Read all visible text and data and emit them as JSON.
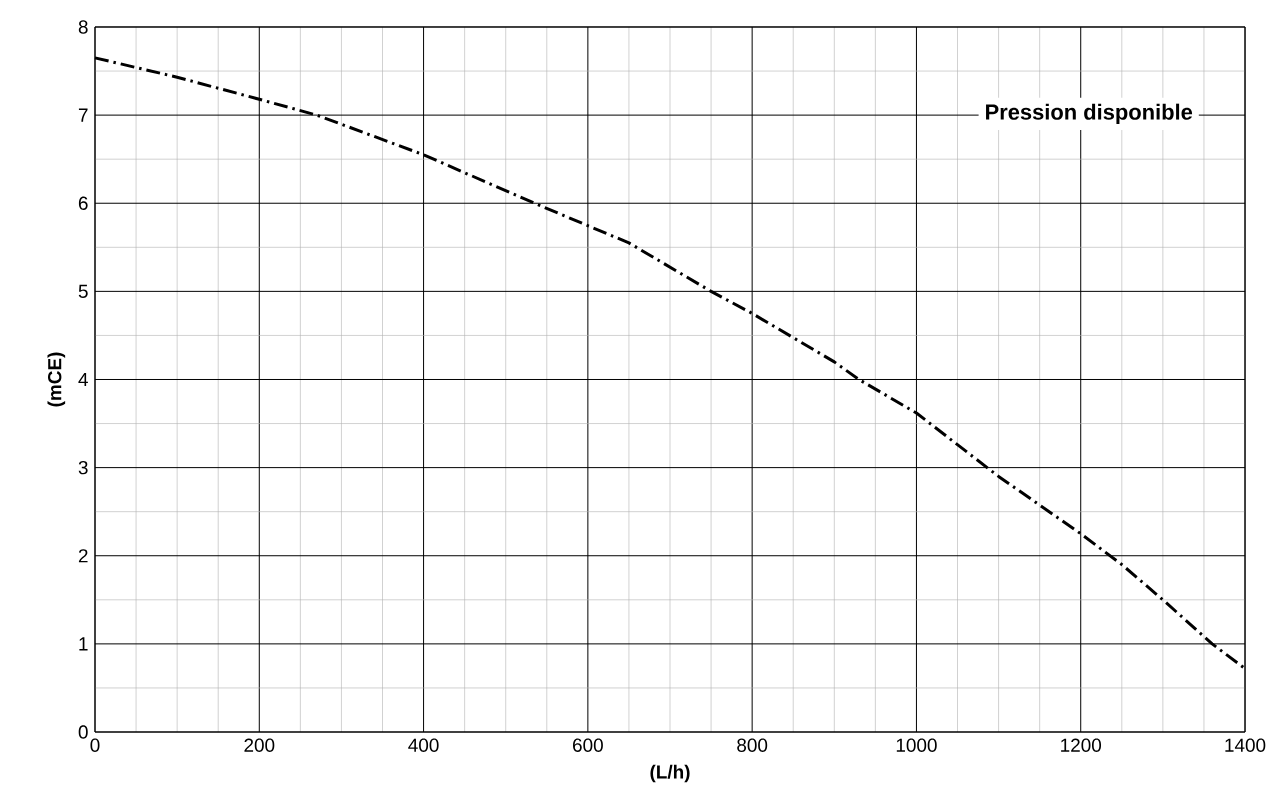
{
  "chart_data": {
    "type": "line",
    "xlabel": "(L/h)",
    "ylabel": "(mCE)",
    "xlim": [
      0,
      1400
    ],
    "ylim": [
      0,
      8
    ],
    "xticks": [
      0,
      200,
      400,
      600,
      800,
      1000,
      1200,
      1400
    ],
    "yticks": [
      0,
      1,
      2,
      3,
      4,
      5,
      6,
      7,
      8
    ],
    "grid": true,
    "legend": "top right",
    "line_style": "dashed",
    "series": [
      {
        "name": "Pression disponible",
        "color": "#000000",
        "x": [
          0,
          100,
          200,
          270,
          400,
          535,
          650,
          750,
          800,
          900,
          930,
          1000,
          1100,
          1200,
          1250,
          1300,
          1360,
          1400
        ],
        "values": [
          7.65,
          7.43,
          7.18,
          7.0,
          6.55,
          6.0,
          5.55,
          5.0,
          4.75,
          4.2,
          4.0,
          3.62,
          2.9,
          2.25,
          1.9,
          1.5,
          1.0,
          0.72
        ]
      }
    ]
  }
}
